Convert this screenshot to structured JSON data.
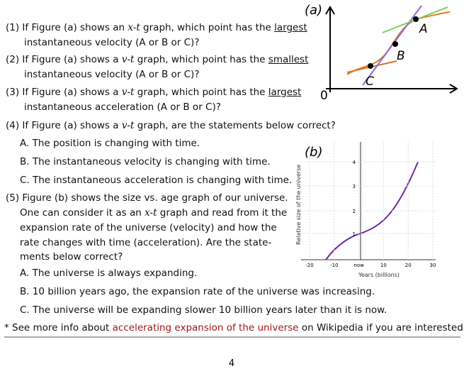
{
  "lines": [
    [
      "(1) If Figure (a) shows an ",
      "x-t",
      " graph, which point has the ",
      "largest"
    ],
    [
      "instantaneous velocity (A or B or C)?"
    ],
    [
      "(2) If Figure (a) shows a ",
      "v-t",
      " graph, which point has the ",
      "smallest"
    ],
    [
      "instantaneous velocity (A or B or C)?"
    ],
    [
      "(3) If Figure (a) shows a ",
      "v-t",
      " graph, which point has the ",
      "largest"
    ],
    [
      "instantaneous acceleration (A or B or C)?"
    ],
    [
      "(4) If Figure (a) shows a ",
      "v-t",
      " graph, are the statements below correct?"
    ],
    [
      "A. The position is changing with time."
    ],
    [
      "B. The instantaneous velocity is changing with time."
    ],
    [
      "C. The instantaneous acceleration is changing with time."
    ],
    [
      "(5) Figure (b) shows the size vs. age graph of our universe."
    ],
    [
      "One can consider it as an ",
      "x-t",
      " graph and read from it the"
    ],
    [
      "expansion rate of the universe (velocity) and how the"
    ],
    [
      "rate changes with time (acceleration). Are the state-"
    ],
    [
      "ments below correct?"
    ],
    [
      "A. The universe is always expanding."
    ],
    [
      "B. 10 billion years ago, the expansion rate of the universe was increasing."
    ],
    [
      "C. The universe will be expanding slower 10 billion years later than it is now."
    ],
    [
      "* See more info about ",
      "accelerating expansion of the universe",
      " on Wikipedia if you are interested."
    ]
  ],
  "figure_a": {
    "label": "(a)",
    "points": [
      "A",
      "B",
      "C"
    ],
    "origin": "0"
  },
  "figure_b": {
    "label": "(b)",
    "y_label": "Relative size of the universe",
    "x_label": "Years (billions)",
    "yticks": [
      "1",
      "2",
      "3",
      "4"
    ],
    "xticks": [
      "-20",
      "-10",
      "now",
      "10",
      "20",
      "30"
    ]
  },
  "page_number": "4"
}
